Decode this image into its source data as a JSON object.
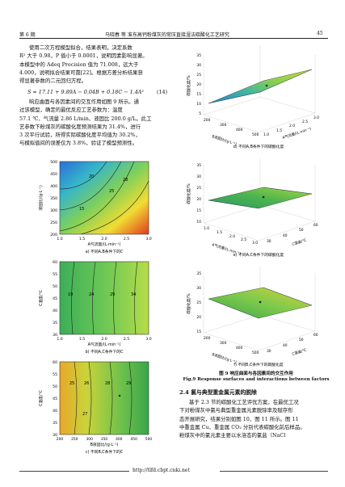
{
  "header": {
    "issue": "第 6 期",
    "title": "马晓春  等  准东高钙粉煤灰的常压直接湿法碳酸化工艺研究",
    "page": "45"
  },
  "left_text": {
    "lines": [
      "使用二次方程模型拟合，结果表明，决定系数",
      "R² 大于 0.98，P 值小于 0.0001，说明因素影响显著。",
      "本模型中的 Adeq Precision 值为 71.008，远大于",
      "4.000，说明拟合结果可靠[22]。根据方差分析结果获",
      "得显著参数的二元回归方程。"
    ],
    "equation": "S = 17.11 + 9.89A − 0.04B + 0.18C − 1.4A²",
    "equation_num": "(14)",
    "lines2": [
      "响应曲面与各因素间的交互作用如图 9 所示。通",
      "过该模型，确定的最优反应工艺参数为：温度",
      "57.1 ℃、气流量 2.86 L/min、液固比 200.0 g/L。此工",
      "艺参数下粉煤灰的碳酸化度预测结果为 31.4%，进行",
      "3 次平行试验，所得实际碳酸化度平均值为 30.2%，",
      "与模拟值间的误差仅为 3.8%，验证了模型预测性。"
    ]
  },
  "contour_a": {
    "ylabel": "液固比/(g·L⁻¹)",
    "xlabel": "A气流量/(L·min⁻¹)",
    "yticks": [
      "500",
      "450",
      "400",
      "350",
      "300",
      "250",
      "200"
    ],
    "xticks": [
      "1.0",
      "1.5",
      "2.0",
      "2.5",
      "3.0"
    ],
    "labels": [
      "20",
      "25",
      "28",
      "15"
    ],
    "caption": "a) 不同A,B条件下的C"
  },
  "contour_b": {
    "ylabel": "C温度/℃",
    "xlabel": "A气流量/(L·min⁻¹)",
    "yticks": [
      "60",
      "55",
      "50",
      "45",
      "40",
      "35",
      "30"
    ],
    "xticks": [
      "1.0",
      "1.5",
      "2.0",
      "2.5",
      "3.0"
    ],
    "labels": [
      "19",
      "24",
      "29",
      "34"
    ],
    "caption": "b) 不同A,C条件下的C"
  },
  "contour_c": {
    "ylabel": "C温度/℃",
    "xlabel": "B液固比/(g·L⁻¹)",
    "yticks": [
      "60",
      "55",
      "50",
      "45",
      "40",
      "35",
      "30"
    ],
    "xticks": [
      "200",
      "250",
      "300",
      "350",
      "400",
      "450",
      "500"
    ],
    "labels": [
      "25",
      "26",
      "28",
      "27",
      "29"
    ],
    "caption": "c) 不同B,C条件下的C"
  },
  "surface_d": {
    "zlabel": "碳酸化度/%",
    "zticks": [
      "35",
      "30",
      "25",
      "20",
      "15",
      "10",
      "5"
    ],
    "xlabel": "A气流量/(L·min⁻¹)",
    "ylabel": "B液固比/(g·L⁻¹)",
    "xticks": [
      "1.0",
      "1.5",
      "2.0",
      "2.5",
      "3.0"
    ],
    "yticks": [
      "200",
      "300",
      "400",
      "500"
    ],
    "caption": "d) 不同A,B条件下的碳酸化度"
  },
  "surface_e": {
    "zlabel": "碳酸化度/%",
    "zticks": [
      "35",
      "30",
      "25",
      "20",
      "15",
      "10"
    ],
    "xlabel": "C温度/℃",
    "ylabel": "A气流量/(L·min⁻¹)",
    "xticks": [
      "30",
      "40",
      "50",
      "60"
    ],
    "yticks": [
      "1.0",
      "1.5",
      "2.0",
      "2.5",
      "3.0"
    ],
    "caption": "e) 不同A,C条件下的碳酸化度"
  },
  "surface_f": {
    "zlabel": "碳酸化度/%",
    "zticks": [
      "35",
      "30",
      "25",
      "20",
      "15"
    ],
    "xlabel": "C温度/℃",
    "ylabel": "B液固比/(g·L⁻¹)",
    "xticks": [
      "30",
      "40",
      "50",
      "60"
    ],
    "yticks": [
      "200",
      "300",
      "400",
      "500"
    ],
    "caption": "f) 不同B,C条件下的碳酸化度"
  },
  "figure_caption": {
    "cn": "图 9  响应曲面与各因素间的交互作用",
    "en": "Fig.9  Response surfaces and interactions between factors"
  },
  "section": {
    "title": "2.4  氯与典型重金属元素的脱除",
    "lines": [
      "基于 2.3 节的碳酸化工艺评优方案，在最优工况",
      "下对粉煤灰中氯与典型重金属元素脱除率及赋存形",
      "态开展研究，结果分别如图 10、图 11 所示。图 11",
      "中重金属 Cu、重金属 CO₂ 分别代表碳酸化前后样品。",
      "粉煤灰中的氯元素主要以水溶态的氯盐（NaCl"
    ]
  },
  "footer": {
    "url": "http://tlfd.cbpt.cnki.net"
  },
  "colors": {
    "contour_low": "#2a6fd6",
    "contour_high": "#e23a1e",
    "surface": "#3aa64a"
  }
}
